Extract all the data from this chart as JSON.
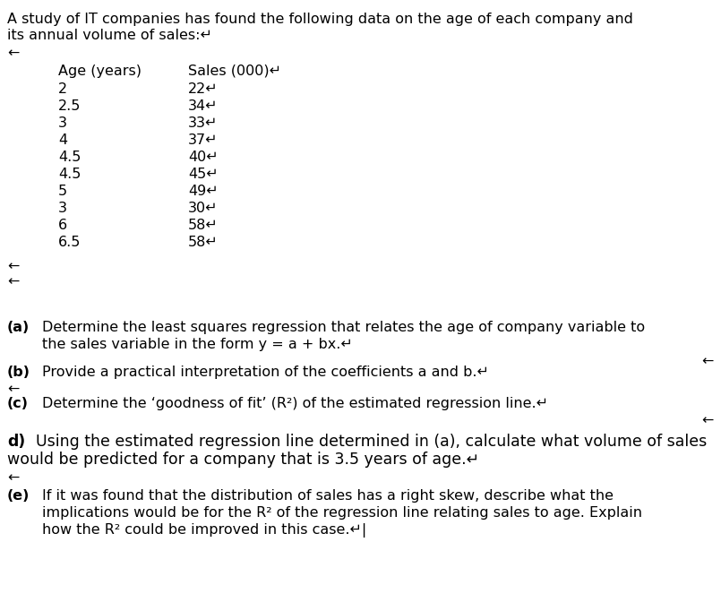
{
  "bg_color": "#ffffff",
  "title_line1": "A study of IT companies has found the following data on the age of each company and",
  "title_line2": "its annual volume of sales:↵",
  "arrow": "←",
  "col_header_age": "Age (years)",
  "col_header_sales": "Sales (000)↵",
  "table_data": [
    [
      "2",
      "22↵"
    ],
    [
      "2.5",
      "34↵"
    ],
    [
      "3",
      "33↵"
    ],
    [
      "4",
      "37↵"
    ],
    [
      "4.5",
      "40↵"
    ],
    [
      "4.5",
      "45↵"
    ],
    [
      "5",
      "49↵"
    ],
    [
      "3",
      "30↵"
    ],
    [
      "6",
      "58↵"
    ],
    [
      "6.5",
      "58↵"
    ]
  ],
  "qa_a_label": "(a)",
  "qa_a_line1": "Determine the least squares regression that relates the age of company variable to",
  "qa_a_line2": "the sales variable in the form y = a + bx.↵",
  "qa_b_label": "(b)",
  "qa_b_text": "Provide a practical interpretation of the coefficients a and b.↵",
  "qa_c_label": "(c)",
  "qa_c_text": "Determine the ‘goodness of fit’ (R²) of the estimated regression line.↵",
  "qa_d_label": "d)",
  "qa_d_line1": "Using the estimated regression line determined in (a), calculate what volume of sales",
  "qa_d_line2": "would be predicted for a company that is 3.5 years of age.↵",
  "qa_e_label": "(e)",
  "qa_e_line1": "If it was found that the distribution of sales has a right skew, describe what the",
  "qa_e_line2": "implications would be for the R² of the regression line relating sales to age. Explain",
  "qa_e_line3": "how the R² could be improved in this case.↵|",
  "fs_main": 11.5,
  "fs_d": 12.5
}
